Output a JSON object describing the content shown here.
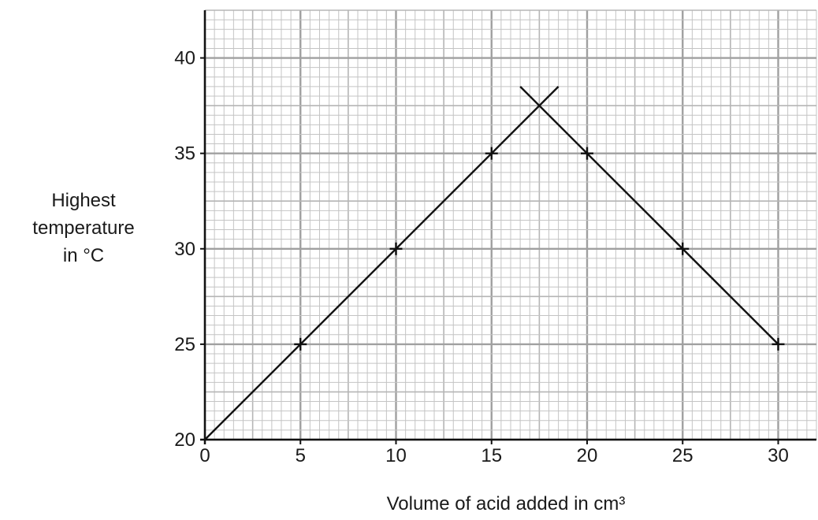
{
  "chart_data": {
    "type": "scatter",
    "xlabel": "Volume of acid added in cm³",
    "ylabel": [
      "Highest",
      "temperature",
      "in °C"
    ],
    "xlim": [
      0,
      32
    ],
    "ylim": [
      20,
      42.5
    ],
    "x_ticks": [
      "0",
      "5",
      "10",
      "15",
      "20",
      "25",
      "30"
    ],
    "y_ticks": [
      "20",
      "25",
      "30",
      "35",
      "40"
    ],
    "grid": true,
    "points": [
      {
        "x": 5,
        "y": 25
      },
      {
        "x": 10,
        "y": 30
      },
      {
        "x": 15,
        "y": 35
      },
      {
        "x": 20,
        "y": 35
      },
      {
        "x": 25,
        "y": 30
      },
      {
        "x": 30,
        "y": 25
      }
    ],
    "best_fit_lines": [
      {
        "x": [
          0,
          18.5
        ],
        "y": [
          20,
          38.5
        ]
      },
      {
        "x": [
          16.5,
          30
        ],
        "y": [
          38.5,
          25
        ]
      }
    ]
  }
}
